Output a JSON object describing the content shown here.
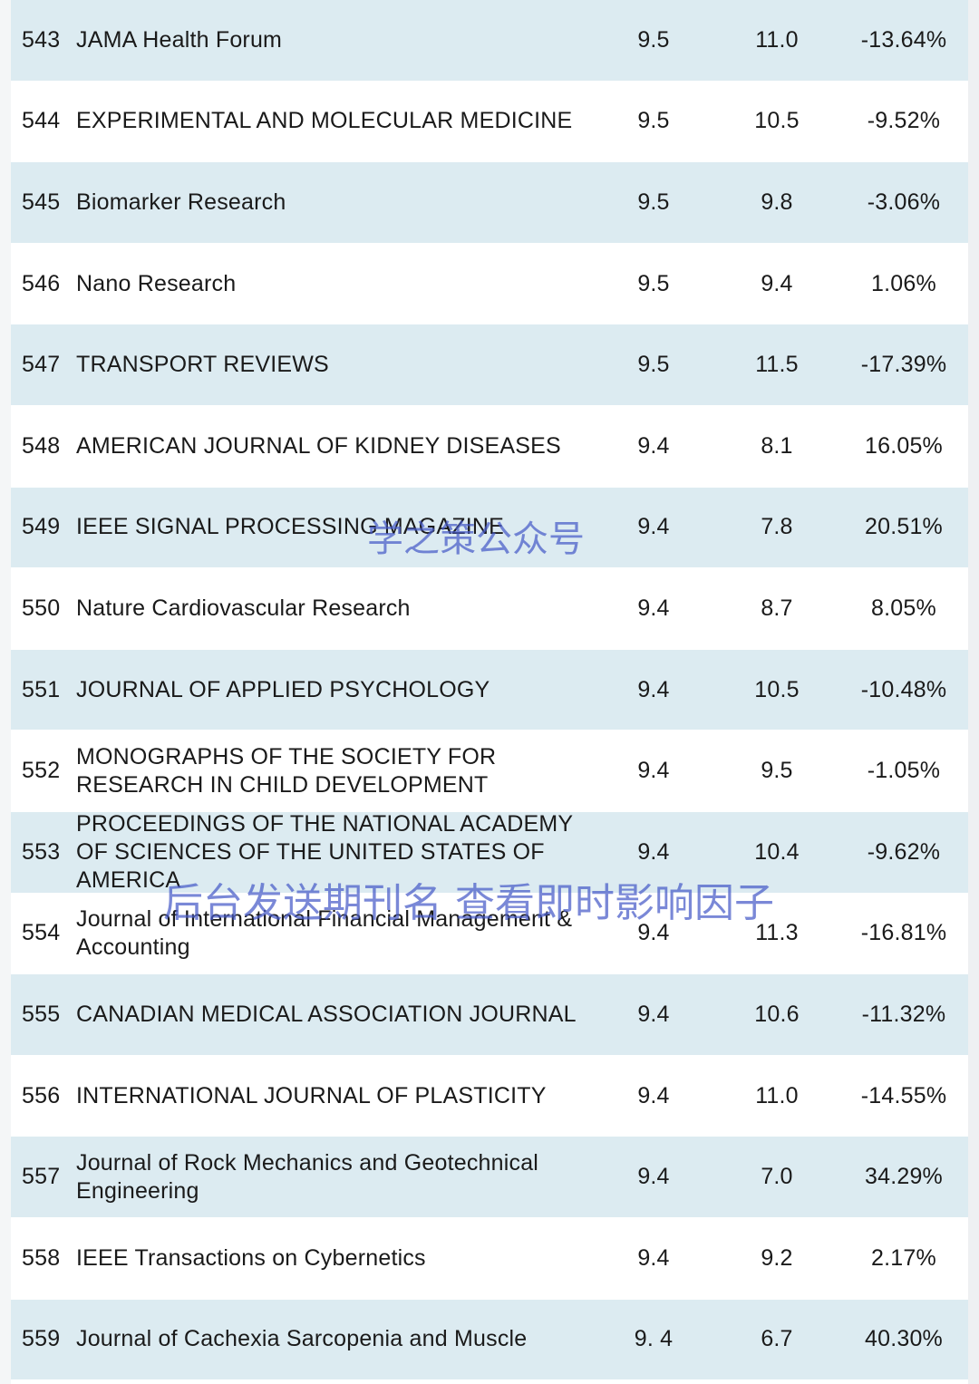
{
  "rows": [
    {
      "rank": "543",
      "journal": "JAMA Health Forum",
      "if_2023": "9.5",
      "if_2022": "11.0",
      "change": "-13.64%"
    },
    {
      "rank": "544",
      "journal": "EXPERIMENTAL AND MOLECULAR MEDICINE",
      "if_2023": "9.5",
      "if_2022": "10.5",
      "change": "-9.52%"
    },
    {
      "rank": "545",
      "journal": "Biomarker Research",
      "if_2023": "9.5",
      "if_2022": "9.8",
      "change": "-3.06%"
    },
    {
      "rank": "546",
      "journal": "Nano Research",
      "if_2023": "9.5",
      "if_2022": "9.4",
      "change": "1.06%"
    },
    {
      "rank": "547",
      "journal": "TRANSPORT REVIEWS",
      "if_2023": "9.5",
      "if_2022": "11.5",
      "change": "-17.39%"
    },
    {
      "rank": "548",
      "journal": "AMERICAN JOURNAL OF KIDNEY DISEASES",
      "if_2023": "9.4",
      "if_2022": "8.1",
      "change": "16.05%"
    },
    {
      "rank": "549",
      "journal": "IEEE SIGNAL PROCESSING MAGAZINE",
      "if_2023": "9.4",
      "if_2022": "7.8",
      "change": "20.51%"
    },
    {
      "rank": "550",
      "journal": "Nature Cardiovascular Research",
      "if_2023": "9.4",
      "if_2022": "8.7",
      "change": "8.05%"
    },
    {
      "rank": "551",
      "journal": "JOURNAL OF APPLIED PSYCHOLOGY",
      "if_2023": "9.4",
      "if_2022": "10.5",
      "change": "-10.48%"
    },
    {
      "rank": "552",
      "journal": "MONOGRAPHS OF THE SOCIETY FOR RESEARCH IN CHILD DEVELOPMENT",
      "if_2023": "9.4",
      "if_2022": "9.5",
      "change": "-1.05%"
    },
    {
      "rank": "553",
      "journal": "PROCEEDINGS OF THE NATIONAL ACADEMY OF SCIENCES OF THE UNITED STATES OF AMERICA",
      "if_2023": "9.4",
      "if_2022": "10.4",
      "change": "-9.62%"
    },
    {
      "rank": "554",
      "journal": "Journal of International Financial Management & Accounting",
      "if_2023": "9.4",
      "if_2022": "11.3",
      "change": "-16.81%"
    },
    {
      "rank": "555",
      "journal": "CANADIAN MEDICAL ASSOCIATION JOURNAL",
      "if_2023": "9.4",
      "if_2022": "10.6",
      "change": "-11.32%"
    },
    {
      "rank": "556",
      "journal": "INTERNATIONAL JOURNAL OF PLASTICITY",
      "if_2023": "9.4",
      "if_2022": "11.0",
      "change": "-14.55%"
    },
    {
      "rank": "557",
      "journal": "Journal of Rock Mechanics and Geotechnical Engineering",
      "if_2023": "9.4",
      "if_2022": "7.0",
      "change": "34.29%"
    },
    {
      "rank": "558",
      "journal": "IEEE Transactions on Cybernetics",
      "if_2023": "9.4",
      "if_2022": "9.2",
      "change": "2.17%"
    },
    {
      "rank": "559",
      "journal": "Journal of Cachexia Sarcopenia and Muscle",
      "if_2023": "9. 4",
      "if_2022": "6.7",
      "change": "40.30%"
    }
  ],
  "watermarks": {
    "top": "学之策公众号",
    "bottom": "后台发送期刊名 查看即时影响因子"
  },
  "colors": {
    "shaded_row": "#dcebf1",
    "plain_row": "#ffffff",
    "watermark": "#4a5ac8"
  }
}
